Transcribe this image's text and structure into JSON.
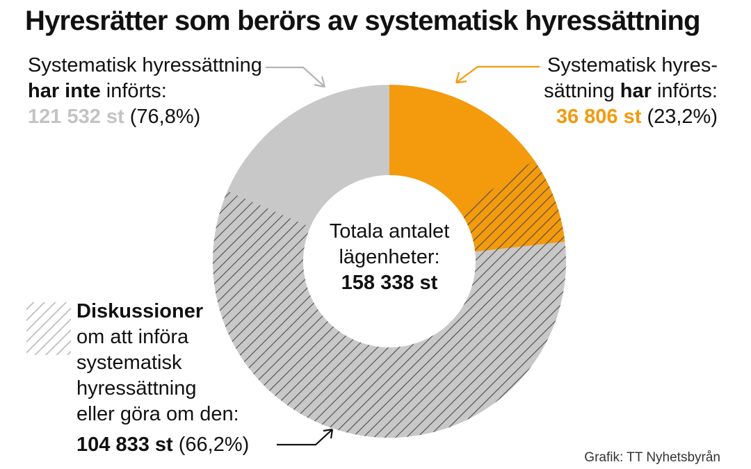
{
  "title": "Hyresrätter som berörs av systematisk hyressättning",
  "source": "Grafik: TT Nyhetsbyrån",
  "colors": {
    "gray": "#c8c8c8",
    "orange": "#f39a0d",
    "hatch_line": "#4a4a4a",
    "arrow_gray": "#b4b4b4",
    "accent_orange": "#f39a0d"
  },
  "labels": {
    "gray": {
      "line1": "Systematisk hyressättning",
      "line2_bold": "har inte",
      "line2_rest": " införts:",
      "value": "121 532 st",
      "pct": "(76,8%)"
    },
    "orange": {
      "line1": "Systematisk hyres-",
      "line2_pre": "sättning ",
      "line2_bold": "har",
      "line2_rest": " införts:",
      "value": "36 806 st",
      "pct": "(23,2%)"
    },
    "hatch": {
      "line1_bold": "Diskussioner",
      "line2": "om att införa",
      "line3": "systematisk",
      "line4": "hyressättning",
      "line5": "eller göra om den:",
      "value": "104 833 st",
      "pct": "(66,2%)"
    },
    "center": {
      "line1": "Totala antalet",
      "line2": "lägenheter:",
      "value": "158 338 st"
    }
  },
  "chart_data": {
    "type": "pie",
    "style": "donut",
    "title": "Hyresrätter som berörs av systematisk hyressättning",
    "total": 158338,
    "slices": [
      {
        "label": "Systematisk hyressättning har införts",
        "value": 36806,
        "percent": 23.2,
        "color": "#f39a0d"
      },
      {
        "label": "Systematisk hyressättning har inte införts",
        "value": 121532,
        "percent": 76.8,
        "color": "#c8c8c8"
      }
    ],
    "overlay": {
      "label": "Diskussioner om att införa systematisk hyressättning eller göra om den",
      "value": 104833,
      "percent": 66.2,
      "pattern": "diagonal-hatch"
    }
  }
}
